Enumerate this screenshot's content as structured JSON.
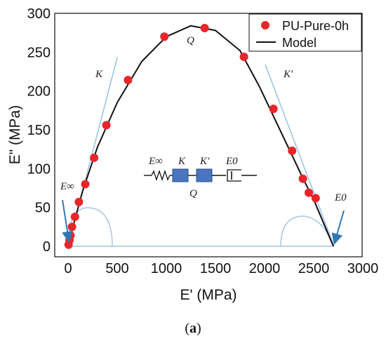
{
  "chart_data": {
    "type": "scatter",
    "xlabel": "E' (MPa)",
    "ylabel": "E\" (MPa)",
    "xlim": [
      -150,
      3000
    ],
    "ylim": [
      -15,
      300
    ],
    "x_ticks": [
      0,
      500,
      1000,
      1500,
      2000,
      2500,
      3000
    ],
    "y_ticks": [
      0,
      50,
      100,
      150,
      200,
      250,
      300
    ],
    "legend_position": "top-right",
    "grid": false,
    "series": [
      {
        "name": "PU-Pure-0h",
        "kind": "scatter",
        "color": "#e8262a",
        "points": [
          [
            5,
            2
          ],
          [
            15,
            8
          ],
          [
            25,
            14
          ],
          [
            40,
            25
          ],
          [
            70,
            38
          ],
          [
            110,
            57
          ],
          [
            175,
            80
          ],
          [
            265,
            114
          ],
          [
            390,
            156
          ],
          [
            610,
            214
          ],
          [
            980,
            270
          ],
          [
            1390,
            281
          ],
          [
            1790,
            244
          ],
          [
            2090,
            177
          ],
          [
            2280,
            123
          ],
          [
            2390,
            87
          ],
          [
            2450,
            69
          ],
          [
            2520,
            62
          ]
        ]
      },
      {
        "name": "Model",
        "kind": "line",
        "color": "#111111",
        "points": [
          [
            0,
            0
          ],
          [
            60,
            30
          ],
          [
            150,
            72
          ],
          [
            300,
            128
          ],
          [
            500,
            185
          ],
          [
            750,
            238
          ],
          [
            1000,
            270
          ],
          [
            1250,
            284
          ],
          [
            1500,
            278
          ],
          [
            1750,
            252
          ],
          [
            1950,
            205
          ],
          [
            2100,
            165
          ],
          [
            2250,
            125
          ],
          [
            2400,
            85
          ],
          [
            2500,
            60
          ],
          [
            2600,
            30
          ],
          [
            2700,
            0
          ]
        ]
      }
    ],
    "annotations": {
      "Q_top": "Q",
      "K": "K",
      "K_prime": "K′",
      "E_inf": "E∞",
      "E_0": "E0",
      "circuit": {
        "E_inf": "E∞",
        "K": "K",
        "K_prime": "K′",
        "E_0": "E0",
        "Q": "Q"
      }
    }
  },
  "caption": {
    "open": "(",
    "letter": "a",
    "close": ")"
  },
  "colors": {
    "tangent": "#9fc3e6",
    "arrow": "#2e78b5",
    "element_box": "#4a74c0",
    "circle_arc": "#a9c6e3"
  }
}
